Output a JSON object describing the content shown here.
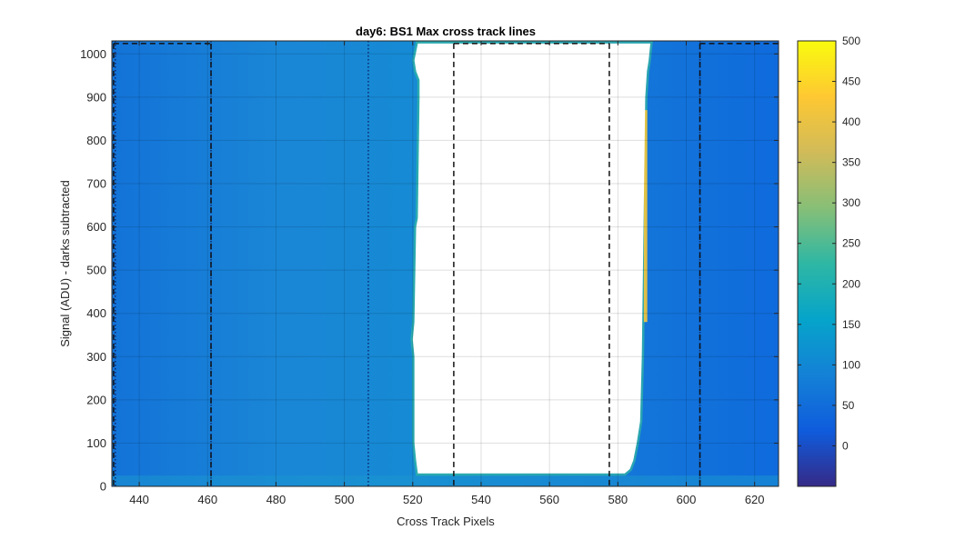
{
  "chart_data": {
    "type": "heatmap",
    "title": "day6: BS1  Max cross track lines",
    "xlabel": "Cross Track Pixels",
    "ylabel": "Signal (ADU) - darks subtracted",
    "xlim": [
      432,
      627
    ],
    "ylim": [
      0,
      1030
    ],
    "xticks": [
      440,
      460,
      480,
      500,
      520,
      540,
      560,
      580,
      600,
      620
    ],
    "yticks": [
      0,
      100,
      200,
      300,
      400,
      500,
      600,
      700,
      800,
      900,
      1000
    ],
    "grid": true,
    "colormap": "parula",
    "colorbar": {
      "clim": [
        -50,
        500
      ],
      "ticks": [
        0,
        50,
        100,
        150,
        200,
        250,
        300,
        350,
        400,
        450,
        500
      ],
      "colors": [
        "#352a87",
        "#0f5cdd",
        "#1481d6",
        "#06a4ca",
        "#2eb7a4",
        "#87bf77",
        "#d1bb59",
        "#fec832",
        "#f9fb0e"
      ]
    },
    "background_value": 60,
    "saturated_region": {
      "x_left_edge": [
        [
          1024,
          521.5
        ],
        [
          985,
          520.5
        ],
        [
          960,
          521
        ],
        [
          940,
          522
        ],
        [
          900,
          522
        ],
        [
          620,
          521.5
        ],
        [
          600,
          521
        ],
        [
          380,
          520.5
        ],
        [
          340,
          520
        ],
        [
          300,
          520.5
        ],
        [
          100,
          520.5
        ],
        [
          60,
          521
        ],
        [
          30,
          521.5
        ]
      ],
      "x_right_edge": [
        [
          1024,
          589.5
        ],
        [
          985,
          589
        ],
        [
          960,
          588.5
        ],
        [
          900,
          588
        ],
        [
          600,
          587.5
        ],
        [
          300,
          587
        ],
        [
          150,
          586.5
        ],
        [
          100,
          585.5
        ],
        [
          60,
          584.5
        ],
        [
          40,
          583.5
        ],
        [
          30,
          582
        ]
      ],
      "y_bottom": 30
    },
    "dark_columns": [
      433,
      461,
      507,
      604
    ],
    "dashed_box_lines": {
      "vertical_x": [
        432.5,
        461,
        532,
        577.5,
        604
      ],
      "top_y": 1024,
      "top_segments": [
        [
          432.5,
          461
        ],
        [
          532,
          577.5
        ],
        [
          604,
          627
        ]
      ]
    }
  }
}
